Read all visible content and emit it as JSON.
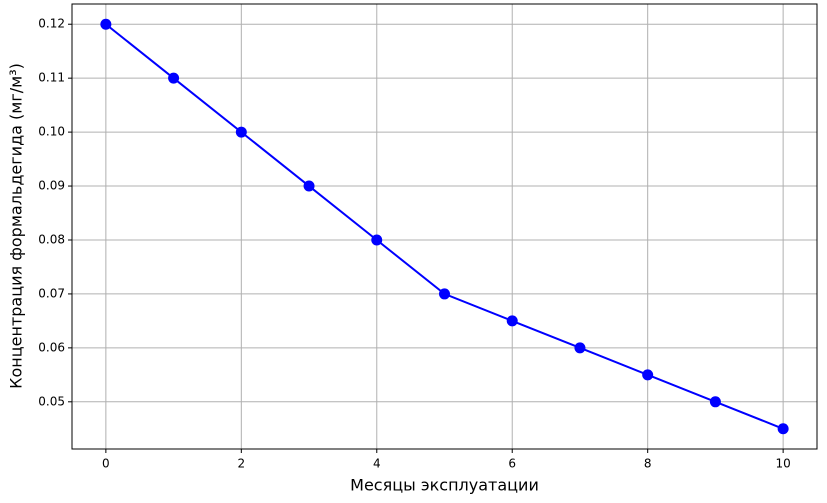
{
  "chart_data": {
    "type": "line",
    "xlabel": "Месяцы эксплуатации",
    "ylabel": "Концентрация формальдегида (мг/м³)",
    "x": [
      0,
      1,
      2,
      3,
      4,
      5,
      6,
      7,
      8,
      9,
      10
    ],
    "series": [
      {
        "color": "#0000ff",
        "values": [
          0.12,
          0.11,
          0.1,
          0.09,
          0.08,
          0.07,
          0.065,
          0.06,
          0.055,
          0.05,
          0.045
        ]
      }
    ],
    "xlim": [
      -0.5,
      10.5
    ],
    "xticks": [
      0,
      2,
      4,
      6,
      8,
      10
    ],
    "ylim": [
      0.04125,
      0.12375
    ],
    "yticks": [
      0.05,
      0.06,
      0.07,
      0.08,
      0.09,
      {
        "value": 0.1,
        "label": "0.10"
      },
      0.11,
      0.12
    ],
    "grid": true
  }
}
